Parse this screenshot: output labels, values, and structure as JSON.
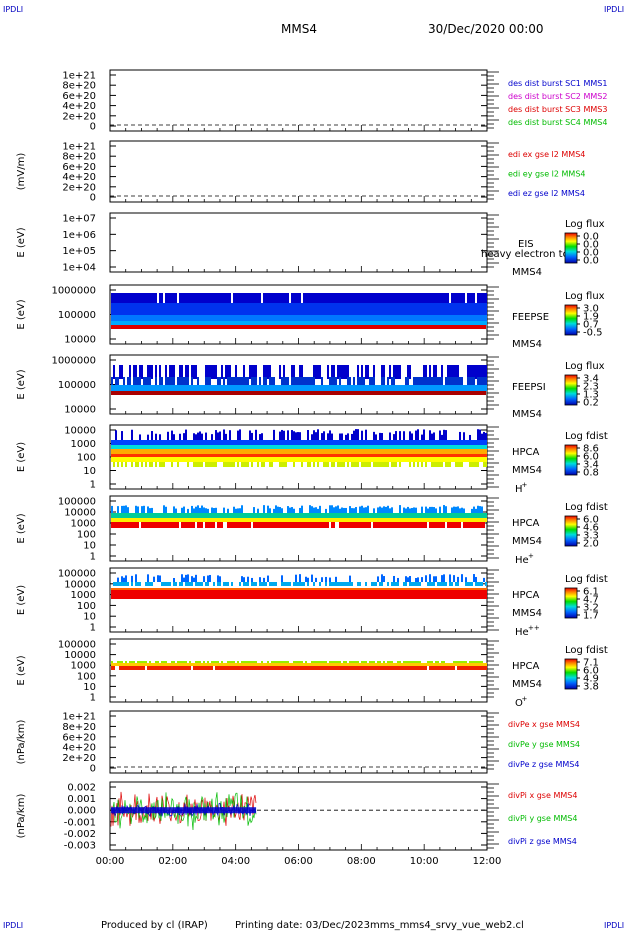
{
  "corner_label": "IPDLI",
  "header": {
    "spacecraft": "MMS4",
    "datetime": "30/Dec/2020 00:00"
  },
  "footer": {
    "produced_by": "Produced by cl (IRAP)",
    "printing_date": "Printing date: 03/Dec/2023",
    "file": "mms_mms4_srvy_vue_web2.cl"
  },
  "colors": {
    "blue": "#0000cc",
    "magenta": "#cc00cc",
    "red": "#dd0000",
    "green": "#00bb00"
  },
  "chart_data": [
    {
      "type": "line",
      "panel": "des-dist",
      "yticks": [
        "1e+21",
        "8e+20",
        "6e+20",
        "4e+20",
        "2e+20",
        "0"
      ],
      "legend": [
        {
          "text": "des dist burst SC1 MMS1",
          "color": "blue"
        },
        {
          "text": "des dist burst SC2 MMS2",
          "color": "magenta"
        },
        {
          "text": "des dist burst SC3 MMS3",
          "color": "red"
        },
        {
          "text": "des dist burst SC4 MMS4",
          "color": "green"
        }
      ]
    },
    {
      "type": "line",
      "panel": "edi",
      "ylabel": "(mV/m)",
      "yticks": [
        "1e+21",
        "8e+20",
        "6e+20",
        "4e+20",
        "2e+20",
        "0"
      ],
      "legend": [
        {
          "text": "edi ex gse l2 MMS4",
          "color": "red"
        },
        {
          "text": "edi ey gse l2 MMS4",
          "color": "green"
        },
        {
          "text": "edi ez gse l2 MMS4",
          "color": "blue"
        }
      ]
    },
    {
      "type": "heatmap",
      "panel": "eis",
      "ylabel": "E (eV)",
      "yticks": [
        "1e+07",
        "1e+06",
        "1e+05",
        "1e+04"
      ],
      "labels": [
        "EIS",
        "MMS4"
      ],
      "overlay": "heavy electron to",
      "cbar_title": "Log flux",
      "cbar_ticks": [
        "0.0",
        "0.0",
        "0.0",
        "0.0"
      ]
    },
    {
      "type": "heatmap",
      "panel": "feepse",
      "ylabel": "E (eV)",
      "yticks": [
        "1000000",
        "100000",
        "10000"
      ],
      "labels": [
        "FEEPSE",
        "MMS4"
      ],
      "cbar_title": "Log flux",
      "cbar_ticks": [
        "3.0",
        "1.9",
        "0.7",
        "-0.5"
      ]
    },
    {
      "type": "heatmap",
      "panel": "feepsi",
      "ylabel": "E (eV)",
      "yticks": [
        "1000000",
        "100000",
        "10000"
      ],
      "labels": [
        "FEEPSI",
        "MMS4"
      ],
      "cbar_title": "Log flux",
      "cbar_ticks": [
        "3.4",
        "2.3",
        "1.3",
        "0.2"
      ]
    },
    {
      "type": "heatmap",
      "panel": "hpca-h",
      "ylabel": "E (eV)",
      "yticks": [
        "10000",
        "1000",
        "100",
        "10",
        "1"
      ],
      "labels": [
        "HPCA",
        "MMS4"
      ],
      "species": "H",
      "charge": "+",
      "cbar_title": "Log fdist",
      "cbar_ticks": [
        "8.6",
        "6.0",
        "3.4",
        "0.8"
      ]
    },
    {
      "type": "heatmap",
      "panel": "hpca-he",
      "ylabel": "E (eV)",
      "yticks": [
        "100000",
        "10000",
        "1000",
        "100",
        "10",
        "1"
      ],
      "labels": [
        "HPCA",
        "MMS4"
      ],
      "species": "He",
      "charge": "+",
      "cbar_title": "Log fdist",
      "cbar_ticks": [
        "6.0",
        "4.6",
        "3.3",
        "2.0"
      ]
    },
    {
      "type": "heatmap",
      "panel": "hpca-he2",
      "ylabel": "E (eV)",
      "yticks": [
        "100000",
        "10000",
        "1000",
        "100",
        "10",
        "1"
      ],
      "labels": [
        "HPCA",
        "MMS4"
      ],
      "species": "He",
      "charge": "++",
      "cbar_title": "Log fdist",
      "cbar_ticks": [
        "6.1",
        "4.7",
        "3.2",
        "1.7"
      ]
    },
    {
      "type": "heatmap",
      "panel": "hpca-o",
      "ylabel": "E (eV)",
      "yticks": [
        "100000",
        "10000",
        "1000",
        "100",
        "10",
        "1"
      ],
      "labels": [
        "HPCA",
        "MMS4"
      ],
      "species": "O",
      "charge": "+",
      "cbar_title": "Log fdist",
      "cbar_ticks": [
        "7.1",
        "6.0",
        "4.9",
        "3.8"
      ]
    },
    {
      "type": "line",
      "panel": "divpe",
      "ylabel": "(nPa/km)",
      "yticks": [
        "1e+21",
        "8e+20",
        "6e+20",
        "4e+20",
        "2e+20",
        "0"
      ],
      "legend": [
        {
          "text": "divPe x gse MMS4",
          "color": "red"
        },
        {
          "text": "divPe y gse MMS4",
          "color": "green"
        },
        {
          "text": "divPe z gse MMS4",
          "color": "blue"
        }
      ]
    },
    {
      "type": "line",
      "panel": "divpi",
      "ylabel": "(nPa/km)",
      "yticks": [
        "0.002",
        "0.001",
        "0.000",
        "-0.001",
        "-0.002",
        "-0.003"
      ],
      "ylim": [
        -0.0035,
        0.0025
      ],
      "data_end_hours": 4.65,
      "legend": [
        {
          "text": "divPi x gse MMS4",
          "color": "red"
        },
        {
          "text": "divPi y gse MMS4",
          "color": "green"
        },
        {
          "text": "divPi z gse MMS4",
          "color": "blue"
        }
      ]
    }
  ],
  "xaxis": {
    "ticks": [
      "00:00",
      "02:00",
      "04:00",
      "06:00",
      "08:00",
      "10:00",
      "12:00"
    ],
    "range_hours": [
      0,
      12
    ]
  }
}
